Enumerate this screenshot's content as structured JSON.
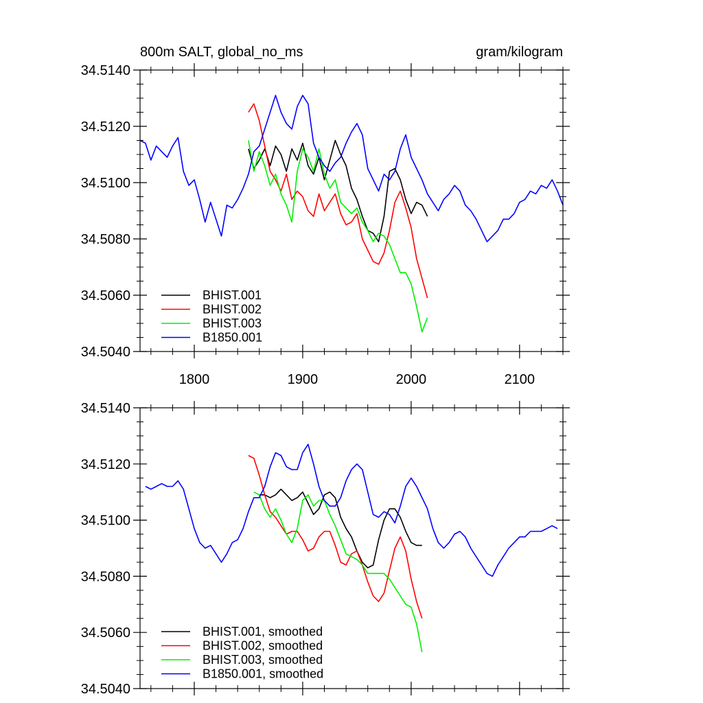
{
  "chart_data": [
    {
      "type": "line",
      "title": "800m SALT, global_no_ms",
      "units": "gram/kilogram",
      "xlabel": "",
      "ylabel": "",
      "xlim": [
        1750,
        2140
      ],
      "ylim": [
        34.504,
        34.514
      ],
      "xticks": [
        1800,
        1900,
        2000,
        2100
      ],
      "xtick_labels": [
        "1800",
        "1900",
        "2000",
        "2100"
      ],
      "yticks": [
        34.504,
        34.506,
        34.508,
        34.51,
        34.512,
        34.514
      ],
      "ytick_labels": [
        "34.5040",
        "34.5060",
        "34.5080",
        "34.5100",
        "34.5120",
        "34.5140"
      ],
      "legend_location": "lower-left",
      "series": [
        {
          "name": "BHIST.001",
          "color": "#000000",
          "x": [
            1850,
            1855,
            1860,
            1865,
            1870,
            1875,
            1880,
            1885,
            1890,
            1895,
            1900,
            1905,
            1910,
            1915,
            1920,
            1925,
            1930,
            1935,
            1940,
            1945,
            1950,
            1955,
            1960,
            1965,
            1970,
            1975,
            1980,
            1985,
            1990,
            1995,
            2000,
            2005,
            2010,
            2015
          ],
          "values": [
            34.5112,
            34.5105,
            34.5108,
            34.5112,
            34.5106,
            34.5113,
            34.511,
            34.5104,
            34.5112,
            34.5108,
            34.5114,
            34.5106,
            34.5103,
            34.5109,
            34.5101,
            34.5108,
            34.5115,
            34.511,
            34.5106,
            34.5098,
            34.5094,
            34.5088,
            34.5083,
            34.5082,
            34.5079,
            34.5088,
            34.5104,
            34.5105,
            34.5101,
            34.5094,
            34.5089,
            34.5093,
            34.5092,
            34.5088
          ]
        },
        {
          "name": "BHIST.002",
          "color": "#ff0000",
          "x": [
            1850,
            1855,
            1860,
            1865,
            1870,
            1875,
            1880,
            1885,
            1890,
            1895,
            1900,
            1905,
            1910,
            1915,
            1920,
            1925,
            1930,
            1935,
            1940,
            1945,
            1950,
            1955,
            1960,
            1965,
            1970,
            1975,
            1980,
            1985,
            1990,
            1995,
            2000,
            2005,
            2010,
            2015
          ],
          "values": [
            34.5125,
            34.5128,
            34.5122,
            34.5113,
            34.5104,
            34.5101,
            34.5097,
            34.5103,
            34.5094,
            34.5097,
            34.5095,
            34.509,
            34.5088,
            34.5096,
            34.509,
            34.5093,
            34.5096,
            34.5089,
            34.5085,
            34.5086,
            34.5089,
            34.508,
            34.5076,
            34.5072,
            34.5071,
            34.5075,
            34.5083,
            34.5093,
            34.5097,
            34.5091,
            34.5084,
            34.5073,
            34.5066,
            34.5059
          ]
        },
        {
          "name": "BHIST.003",
          "color": "#00ee00",
          "x": [
            1850,
            1855,
            1860,
            1865,
            1870,
            1875,
            1880,
            1885,
            1890,
            1895,
            1900,
            1905,
            1910,
            1915,
            1920,
            1925,
            1930,
            1935,
            1940,
            1945,
            1950,
            1955,
            1960,
            1965,
            1970,
            1975,
            1980,
            1985,
            1990,
            1995,
            2000,
            2005,
            2010,
            2015
          ],
          "values": [
            34.5115,
            34.5104,
            34.5111,
            34.5106,
            34.5099,
            34.5103,
            34.5096,
            34.5092,
            34.5086,
            34.5104,
            34.5112,
            34.5109,
            34.5104,
            34.5112,
            34.5103,
            34.5098,
            34.5101,
            34.5093,
            34.5091,
            34.5089,
            34.5091,
            34.5086,
            34.5083,
            34.5079,
            34.5082,
            34.5081,
            34.5078,
            34.5073,
            34.5068,
            34.5068,
            34.5064,
            34.5056,
            34.5047,
            34.5052
          ]
        },
        {
          "name": "B1850.001",
          "color": "#0000ff",
          "x": [
            1750,
            1755,
            1760,
            1765,
            1770,
            1775,
            1780,
            1785,
            1790,
            1795,
            1800,
            1805,
            1810,
            1815,
            1820,
            1825,
            1830,
            1835,
            1840,
            1845,
            1850,
            1855,
            1860,
            1865,
            1870,
            1875,
            1880,
            1885,
            1890,
            1895,
            1900,
            1905,
            1910,
            1915,
            1920,
            1925,
            1930,
            1935,
            1940,
            1945,
            1950,
            1955,
            1960,
            1965,
            1970,
            1975,
            1980,
            1985,
            1990,
            1995,
            2000,
            2005,
            2010,
            2015,
            2020,
            2025,
            2030,
            2035,
            2040,
            2045,
            2050,
            2055,
            2060,
            2065,
            2070,
            2075,
            2080,
            2085,
            2090,
            2095,
            2100,
            2105,
            2110,
            2115,
            2120,
            2125,
            2130,
            2135,
            2140
          ],
          "values": [
            34.5115,
            34.5114,
            34.5108,
            34.5113,
            34.5111,
            34.5109,
            34.5113,
            34.5116,
            34.5104,
            34.5099,
            34.5101,
            34.5094,
            34.5086,
            34.5093,
            34.5087,
            34.5081,
            34.5092,
            34.5091,
            34.5094,
            34.5098,
            34.5103,
            34.5111,
            34.5113,
            34.5119,
            34.5125,
            34.5131,
            34.5125,
            34.5121,
            34.5119,
            34.5127,
            34.5131,
            34.5128,
            34.5114,
            34.5109,
            34.5106,
            34.5104,
            34.5107,
            34.5109,
            34.5114,
            34.5118,
            34.5121,
            34.5117,
            34.5105,
            34.5101,
            34.5097,
            34.5103,
            34.5101,
            34.5104,
            34.5112,
            34.5117,
            34.5109,
            34.5105,
            34.5101,
            34.5096,
            34.5093,
            34.509,
            34.5094,
            34.5096,
            34.5099,
            34.5097,
            34.5092,
            34.509,
            34.5087,
            34.5083,
            34.5079,
            34.5081,
            34.5083,
            34.5087,
            34.5087,
            34.5089,
            34.5093,
            34.5094,
            34.5097,
            34.5096,
            34.5099,
            34.5098,
            34.5101,
            34.5097,
            34.5092
          ]
        }
      ]
    },
    {
      "type": "line",
      "title": "",
      "xlabel": "",
      "ylabel": "",
      "xlim": [
        1750,
        2140
      ],
      "ylim": [
        34.504,
        34.514
      ],
      "xticks": [
        1800,
        1900,
        2000,
        2100
      ],
      "xtick_labels": [],
      "yticks": [
        34.504,
        34.506,
        34.508,
        34.51,
        34.512,
        34.514
      ],
      "ytick_labels": [
        "34.5040",
        "34.5060",
        "34.5080",
        "34.5100",
        "34.5120",
        "34.5140"
      ],
      "legend_location": "lower-left",
      "series": [
        {
          "name": "BHIST.001, smoothed",
          "color": "#000000",
          "x": [
            1860,
            1865,
            1870,
            1875,
            1880,
            1885,
            1890,
            1895,
            1900,
            1905,
            1910,
            1915,
            1920,
            1925,
            1930,
            1935,
            1940,
            1945,
            1950,
            1955,
            1960,
            1965,
            1970,
            1975,
            1980,
            1985,
            1990,
            1995,
            2000,
            2005,
            2010
          ],
          "values": [
            34.5109,
            34.5109,
            34.5108,
            34.5109,
            34.5111,
            34.5109,
            34.5107,
            34.5108,
            34.511,
            34.5106,
            34.5102,
            34.5104,
            34.5109,
            34.511,
            34.5108,
            34.5101,
            34.5097,
            34.5094,
            34.5089,
            34.5085,
            34.5083,
            34.5084,
            34.5093,
            34.51,
            34.5104,
            34.5104,
            34.5101,
            34.5096,
            34.5092,
            34.5091,
            34.5091
          ]
        },
        {
          "name": "BHIST.002, smoothed",
          "color": "#ff0000",
          "x": [
            1850,
            1855,
            1860,
            1865,
            1870,
            1875,
            1880,
            1885,
            1890,
            1895,
            1900,
            1905,
            1910,
            1915,
            1920,
            1925,
            1930,
            1935,
            1940,
            1945,
            1950,
            1955,
            1960,
            1965,
            1970,
            1975,
            1980,
            1985,
            1990,
            1995,
            2000,
            2005,
            2010
          ],
          "values": [
            34.5123,
            34.5122,
            34.5116,
            34.5109,
            34.5103,
            34.5101,
            34.5098,
            34.5095,
            34.5096,
            34.5096,
            34.5093,
            34.5089,
            34.509,
            34.5094,
            34.5096,
            34.5096,
            34.5091,
            34.5085,
            34.5084,
            34.5088,
            34.5089,
            34.5084,
            34.5078,
            34.5073,
            34.5071,
            34.5074,
            34.5082,
            34.509,
            34.5094,
            34.5089,
            34.5079,
            34.5071,
            34.5065
          ]
        },
        {
          "name": "BHIST.003, smoothed",
          "color": "#00ee00",
          "x": [
            1855,
            1860,
            1865,
            1870,
            1875,
            1880,
            1885,
            1890,
            1895,
            1900,
            1905,
            1910,
            1915,
            1920,
            1925,
            1930,
            1935,
            1940,
            1945,
            1950,
            1955,
            1960,
            1965,
            1970,
            1975,
            1980,
            1985,
            1990,
            1995,
            2000,
            2005,
            2010
          ],
          "values": [
            34.511,
            34.5109,
            34.5104,
            34.5101,
            34.5104,
            34.51,
            34.5095,
            34.5092,
            34.5097,
            34.5107,
            34.5109,
            34.5105,
            34.5107,
            34.5107,
            34.5102,
            34.5098,
            34.5093,
            34.5088,
            34.5087,
            34.5086,
            34.5084,
            34.5081,
            34.5081,
            34.5081,
            34.5081,
            34.5079,
            34.5076,
            34.5073,
            34.507,
            34.5069,
            34.5063,
            34.5053
          ]
        },
        {
          "name": "B1850.001, smoothed",
          "color": "#0000ff",
          "x": [
            1755,
            1760,
            1765,
            1770,
            1775,
            1780,
            1785,
            1790,
            1795,
            1800,
            1805,
            1810,
            1815,
            1820,
            1825,
            1830,
            1835,
            1840,
            1845,
            1850,
            1855,
            1860,
            1865,
            1870,
            1875,
            1880,
            1885,
            1890,
            1895,
            1900,
            1905,
            1910,
            1915,
            1920,
            1925,
            1930,
            1935,
            1940,
            1945,
            1950,
            1955,
            1960,
            1965,
            1970,
            1975,
            1980,
            1985,
            1990,
            1995,
            2000,
            2005,
            2010,
            2015,
            2020,
            2025,
            2030,
            2035,
            2040,
            2045,
            2050,
            2055,
            2060,
            2065,
            2070,
            2075,
            2080,
            2085,
            2090,
            2095,
            2100,
            2105,
            2110,
            2115,
            2120,
            2125,
            2130,
            2135
          ],
          "values": [
            34.5112,
            34.5111,
            34.5112,
            34.5113,
            34.5112,
            34.5112,
            34.5114,
            34.5111,
            34.5104,
            34.5097,
            34.5092,
            34.509,
            34.5091,
            34.5088,
            34.5085,
            34.5088,
            34.5092,
            34.5093,
            34.5097,
            34.5103,
            34.5108,
            34.5108,
            34.5112,
            34.5119,
            34.5124,
            34.5123,
            34.5119,
            34.5118,
            34.5118,
            34.5124,
            34.5127,
            34.512,
            34.5112,
            34.5107,
            34.5105,
            34.5105,
            34.5108,
            34.5114,
            34.5118,
            34.512,
            34.5118,
            34.511,
            34.5102,
            34.5101,
            34.5103,
            34.5102,
            34.5099,
            34.5105,
            34.5112,
            34.5115,
            34.5112,
            34.5108,
            34.5104,
            34.5097,
            34.5092,
            34.509,
            34.5092,
            34.5095,
            34.5096,
            34.5094,
            34.509,
            34.5087,
            34.5084,
            34.5081,
            34.508,
            34.5084,
            34.5087,
            34.509,
            34.5092,
            34.5094,
            34.5094,
            34.5096,
            34.5096,
            34.5096,
            34.5097,
            34.5098,
            34.5097
          ]
        }
      ]
    }
  ]
}
